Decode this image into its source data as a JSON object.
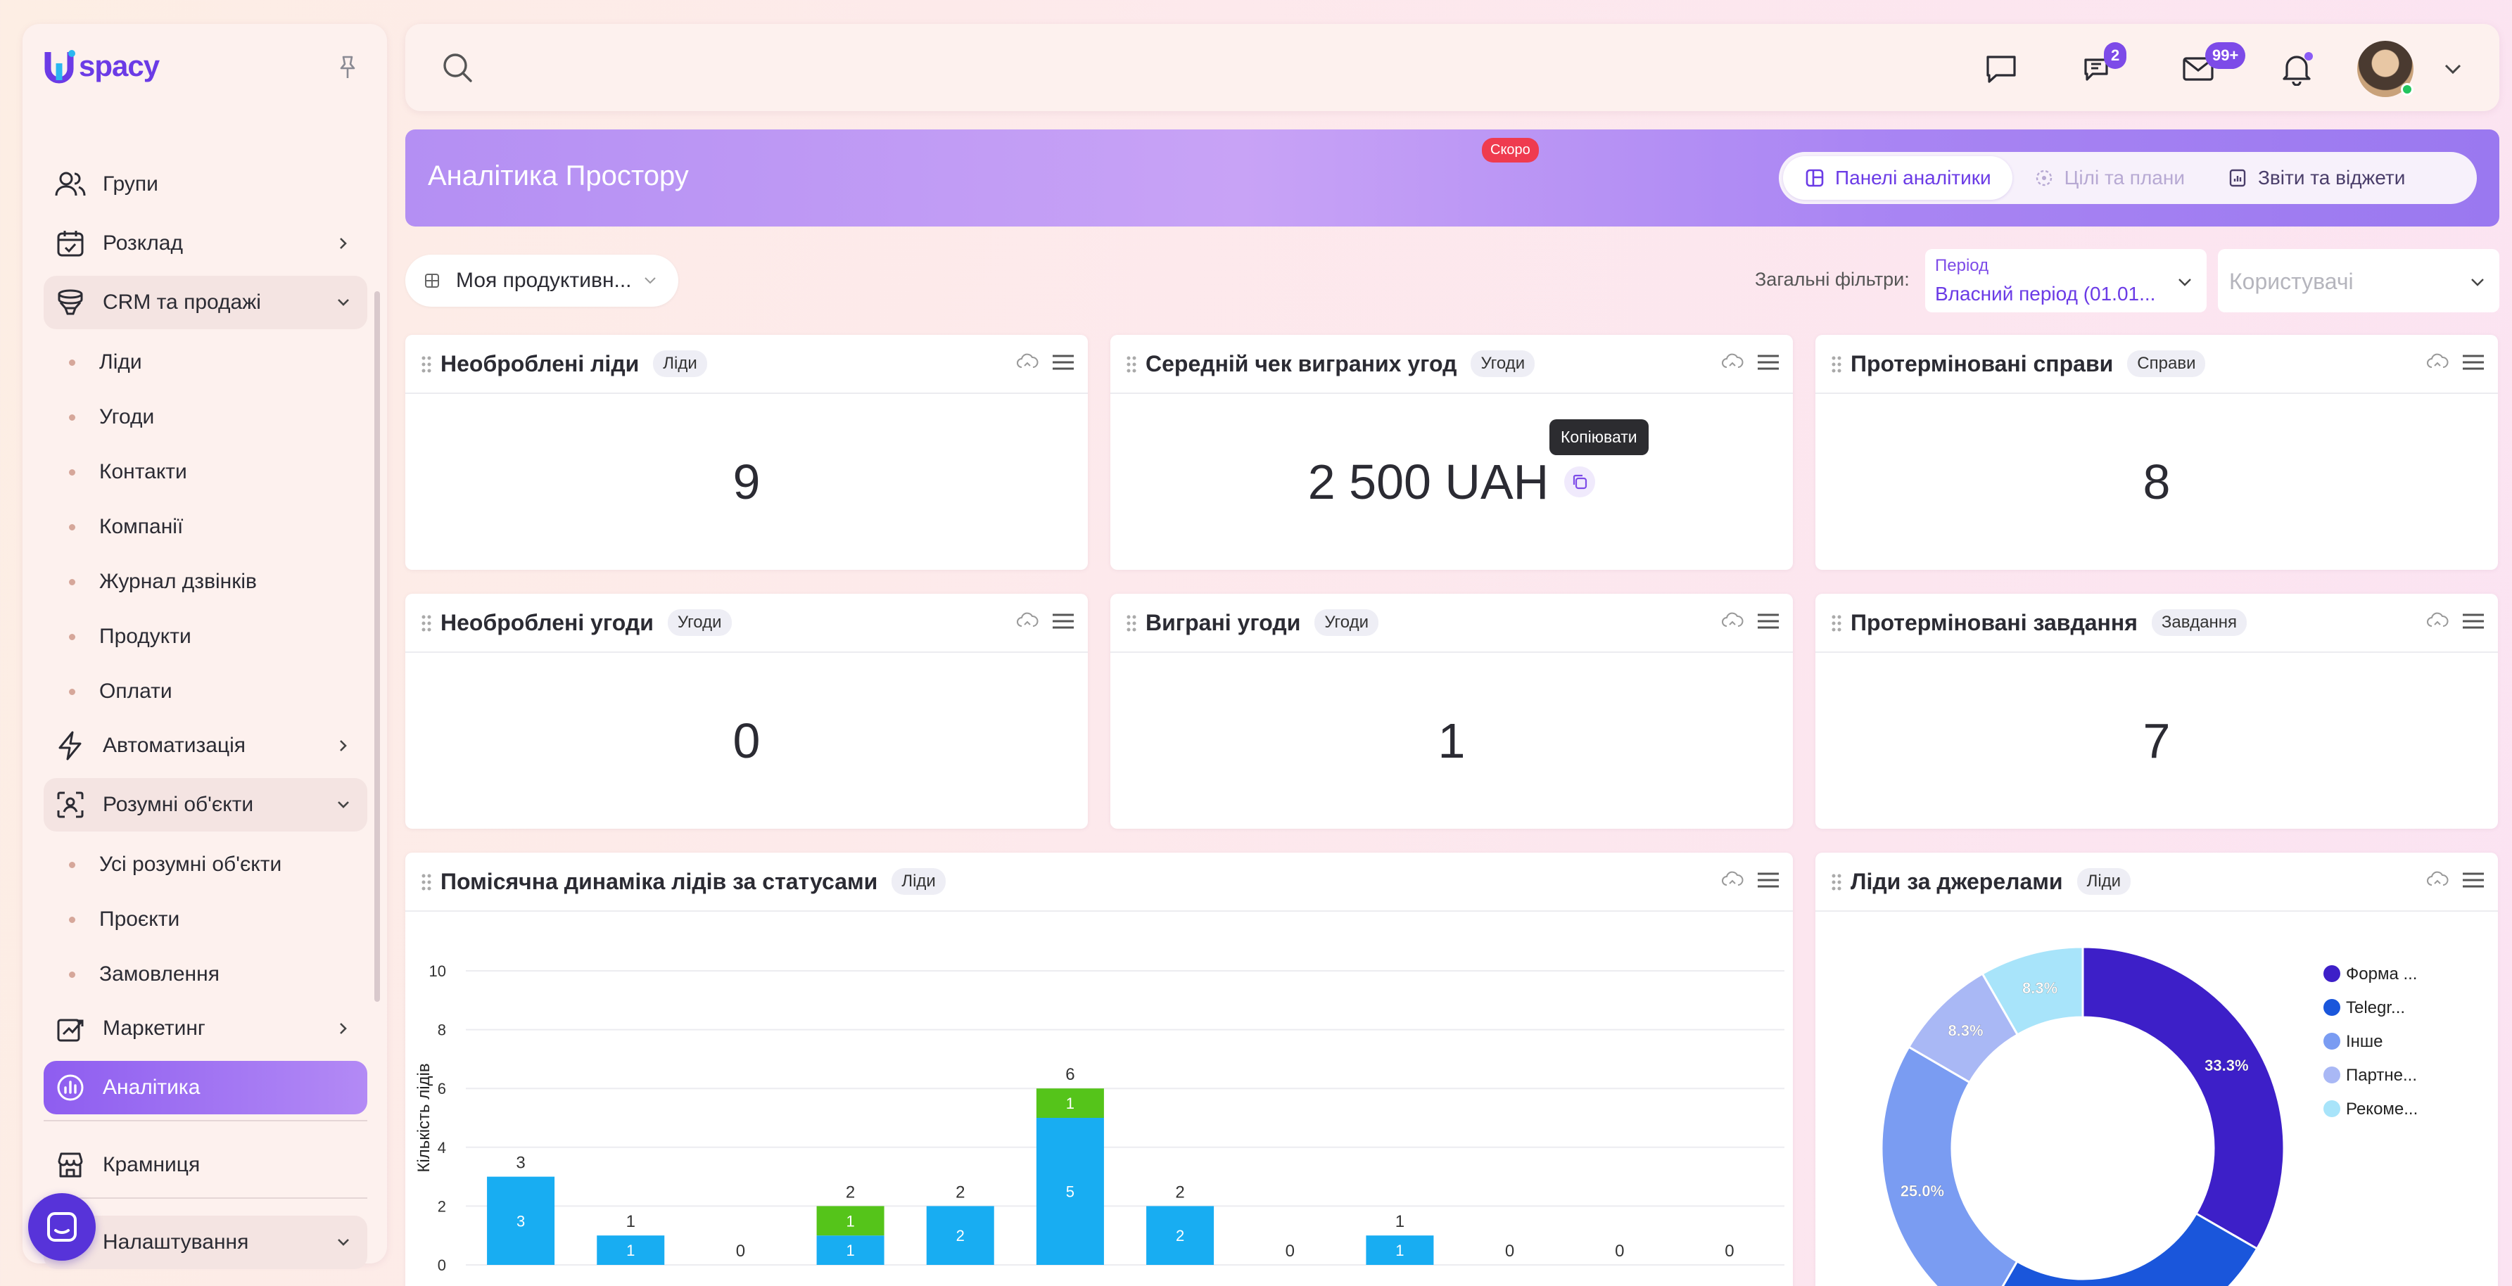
{
  "app": {
    "logo_text": "spacy",
    "logo_letter": "U"
  },
  "sidebar": {
    "items": [
      {
        "label": "Групи",
        "icon": "users-icon"
      },
      {
        "label": "Розклад",
        "icon": "calendar-icon",
        "chevron": "right"
      },
      {
        "label": "CRM та продажі",
        "icon": "database-icon",
        "chevron": "down",
        "expanded": true,
        "children": [
          "Ліди",
          "Угоди",
          "Контакти",
          "Компанії",
          "Журнал дзвінків",
          "Продукти",
          "Оплати"
        ]
      },
      {
        "label": "Автоматизація",
        "icon": "lightning-icon",
        "chevron": "right"
      },
      {
        "label": "Розумні об'єкти",
        "icon": "scan-icon",
        "chevron": "down",
        "expanded": true,
        "children": [
          "Усі розумні об'єкти",
          "Проєкти",
          "Замовлення"
        ]
      },
      {
        "label": "Маркетинг",
        "icon": "marketing-icon",
        "chevron": "right"
      },
      {
        "label": "Аналітика",
        "icon": "analytics-icon",
        "active": true
      }
    ],
    "bottom": [
      {
        "label": "Крамниця",
        "icon": "store-icon"
      },
      {
        "label": "Налаштування",
        "icon": "settings-icon",
        "chevron": "down"
      }
    ]
  },
  "topbar": {
    "chat_badge": "2",
    "mail_badge": "99+"
  },
  "header": {
    "title": "Аналітика Простору",
    "tabs": [
      {
        "label": "Панелі аналітики",
        "active": true
      },
      {
        "label": "Цілі та плани",
        "disabled": true
      },
      {
        "label": "Звіти та віджети"
      }
    ],
    "soon_badge": "Скоро"
  },
  "filters": {
    "dashboard": "Моя продуктивн...",
    "general_label": "Загальні фільтри:",
    "period_label": "Період",
    "period_value": "Власний період (01.01...",
    "users_placeholder": "Користувачі"
  },
  "widgets": [
    {
      "title": "Необроблені ліди",
      "tag": "Ліди",
      "value": "9"
    },
    {
      "title": "Середній чек виграних угод",
      "tag": "Угоди",
      "value": "2 500 UAH",
      "tooltip": "Копіювати"
    },
    {
      "title": "Протерміновані справи",
      "tag": "Справи",
      "value": "8"
    },
    {
      "title": "Необроблені угоди",
      "tag": "Угоди",
      "value": "0"
    },
    {
      "title": "Виграні угоди",
      "tag": "Угоди",
      "value": "1"
    },
    {
      "title": "Протерміновані завдання",
      "tag": "Завдання",
      "value": "7"
    }
  ],
  "bar_widget": {
    "title": "Помісячна динаміка лідів за статусами",
    "tag": "Ліди"
  },
  "pie_widget": {
    "title": "Ліди за джерелами",
    "tag": "Ліди"
  },
  "chart_data": [
    {
      "type": "bar",
      "stacked": true,
      "ylabel": "Кількість лідів",
      "ylim": [
        0,
        10
      ],
      "yticks": [
        0,
        2,
        4,
        6,
        8,
        10
      ],
      "totals": [
        3,
        1,
        0,
        2,
        2,
        6,
        2,
        0,
        1,
        0,
        0,
        0
      ],
      "series": [
        {
          "color": "#18adf2",
          "values": [
            3,
            1,
            0,
            1,
            2,
            5,
            2,
            0,
            1,
            0,
            0,
            0
          ]
        },
        {
          "color": "#55c41a",
          "values": [
            0,
            0,
            0,
            1,
            0,
            1,
            0,
            0,
            0,
            0,
            0,
            0
          ]
        }
      ],
      "grid": true
    },
    {
      "type": "pie",
      "donut": true,
      "legend_position": "right",
      "slices": [
        {
          "label": "Форма ...",
          "value": 33.3,
          "display": "33.3%",
          "color": "#3d1fc8"
        },
        {
          "label": "Telegr...",
          "value": 25.0,
          "display": "25.0%",
          "color": "#1a56db"
        },
        {
          "label": "Інше",
          "value": 25.0,
          "display": "25.0%",
          "color": "#7a9cf2"
        },
        {
          "label": "Партне...",
          "value": 8.3,
          "display": "8.3%",
          "color": "#a9b8f5"
        },
        {
          "label": "Рекоме...",
          "value": 8.3,
          "display": "8.3%",
          "color": "#a8e4fa"
        }
      ]
    }
  ]
}
